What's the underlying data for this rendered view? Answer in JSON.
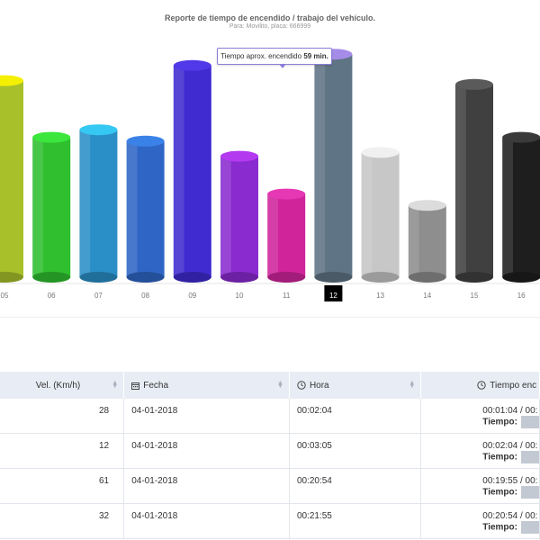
{
  "chart": {
    "title": "Reporte de tiempo de encendido / trabajo del vehículo.",
    "subtitle": "Para: Movilito, placa: 666999",
    "tooltip_prefix": "Tiempo aprox. encendido",
    "tooltip_value": "59 min.",
    "active_label": "12"
  },
  "chart_data": {
    "type": "bar",
    "categories": [
      "05",
      "06",
      "07",
      "08",
      "09",
      "10",
      "11",
      "12",
      "13",
      "14",
      "15",
      "16"
    ],
    "values": [
      52,
      37,
      39,
      36,
      56,
      32,
      22,
      59,
      33,
      19,
      51,
      37
    ],
    "colors": [
      "#a8c12b",
      "#2fbf2f",
      "#2a8fc6",
      "#2f66c5",
      "#3f2bd0",
      "#8a2bd0",
      "#d0249b",
      "#5f7484",
      "#c7c7c7",
      "#8e8e8e",
      "#404040",
      "#1e1e1e"
    ],
    "top_colors": [
      "#f5ef00",
      "#3ce63c",
      "#34c8f2",
      "#3a82e8",
      "#5138e8",
      "#b43af0",
      "#e637b4",
      "#a58ce8",
      "#f0f0f0",
      "#dcdcdc",
      "#5a5a5a",
      "#3a3a3a"
    ],
    "active_index": 7,
    "ylim": [
      0,
      60
    ]
  },
  "table": {
    "headers": {
      "vel": "Vel. (Km/h)",
      "fecha": "Fecha",
      "hora": "Hora",
      "tiempo": "Tiempo enc"
    },
    "tiempo_label": "Tiempo:",
    "rows": [
      {
        "vel": "28",
        "fecha": "04-01-2018",
        "hora": "00:02:04",
        "rango": "00:01:04 / 00:"
      },
      {
        "vel": "12",
        "fecha": "04-01-2018",
        "hora": "00:03:05",
        "rango": "00:02:04 / 00:"
      },
      {
        "vel": "61",
        "fecha": "04-01-2018",
        "hora": "00:20:54",
        "rango": "00:19:55 / 00:"
      },
      {
        "vel": "32",
        "fecha": "04-01-2018",
        "hora": "00:21:55",
        "rango": "00:20:54 / 00:"
      }
    ]
  }
}
